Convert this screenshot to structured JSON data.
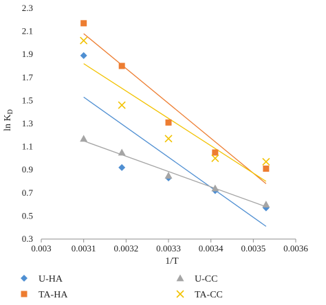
{
  "chart_data": {
    "type": "scatter",
    "title": "",
    "xlabel": "1/T",
    "ylabel_main": "ln K",
    "ylabel_sub": "D",
    "xlim": [
      0.003,
      0.0036
    ],
    "ylim": [
      0.3,
      2.3
    ],
    "x_ticks": [
      0.003,
      0.0031,
      0.0032,
      0.0033,
      0.0034,
      0.0035,
      0.0036
    ],
    "x_tick_labels": [
      "0.003",
      "0.0031",
      "0.0032",
      "0.0033",
      "0.0034",
      "0.0035",
      "0.0036"
    ],
    "y_ticks": [
      0.3,
      0.5,
      0.7,
      0.9,
      1.1,
      1.3,
      1.5,
      1.7,
      1.9,
      2.1,
      2.3
    ],
    "y_tick_labels": [
      "0.3",
      "0.5",
      "0.7",
      "0.9",
      "1.1",
      "1.3",
      "1.5",
      "1.7",
      "1.9",
      "2.1",
      "2.3"
    ],
    "grid": false,
    "legend_position": "bottom",
    "series": [
      {
        "name": "U-HA",
        "marker": "diamond",
        "color": "#4f8fd2",
        "x": [
          0.0031,
          0.00319,
          0.0033,
          0.00341,
          0.00353
        ],
        "y": [
          1.89,
          0.92,
          0.83,
          0.72,
          0.57
        ],
        "trend": {
          "x": [
            0.0031,
            0.00353
          ],
          "y": [
            1.53,
            0.41
          ]
        }
      },
      {
        "name": "U-CC",
        "marker": "triangle",
        "color": "#a5a5a5",
        "x": [
          0.0031,
          0.00319,
          0.0033,
          0.00341,
          0.00353
        ],
        "y": [
          1.17,
          1.05,
          0.85,
          0.74,
          0.6
        ],
        "trend": {
          "x": [
            0.0031,
            0.00353
          ],
          "y": [
            1.15,
            0.58
          ]
        }
      },
      {
        "name": "TA-HA",
        "marker": "square",
        "color": "#ed7d31",
        "x": [
          0.0031,
          0.00319,
          0.0033,
          0.00341,
          0.00353
        ],
        "y": [
          2.17,
          1.8,
          1.31,
          1.05,
          0.91
        ],
        "trend": {
          "x": [
            0.0031,
            0.00353
          ],
          "y": [
            2.08,
            0.78
          ]
        }
      },
      {
        "name": "TA-CC",
        "marker": "x",
        "color": "#f2c200",
        "x": [
          0.0031,
          0.00319,
          0.0033,
          0.00341,
          0.00353
        ],
        "y": [
          2.02,
          1.46,
          1.17,
          1.0,
          0.97
        ],
        "trend": {
          "x": [
            0.0031,
            0.00353
          ],
          "y": [
            1.82,
            0.8
          ]
        }
      }
    ]
  }
}
